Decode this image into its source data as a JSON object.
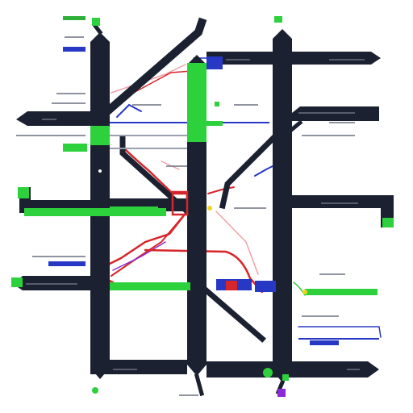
{
  "palette": {
    "road": "#1b2130",
    "green": "#2dd13c",
    "blue": "#2638c4",
    "red": "#d6262b",
    "pink": "#f0a0a6",
    "purple": "#8b2bd8",
    "text_dark": "#3a3f4c",
    "text_blue": "#3342b8",
    "text_green": "#2fae3a"
  },
  "labels": {}
}
